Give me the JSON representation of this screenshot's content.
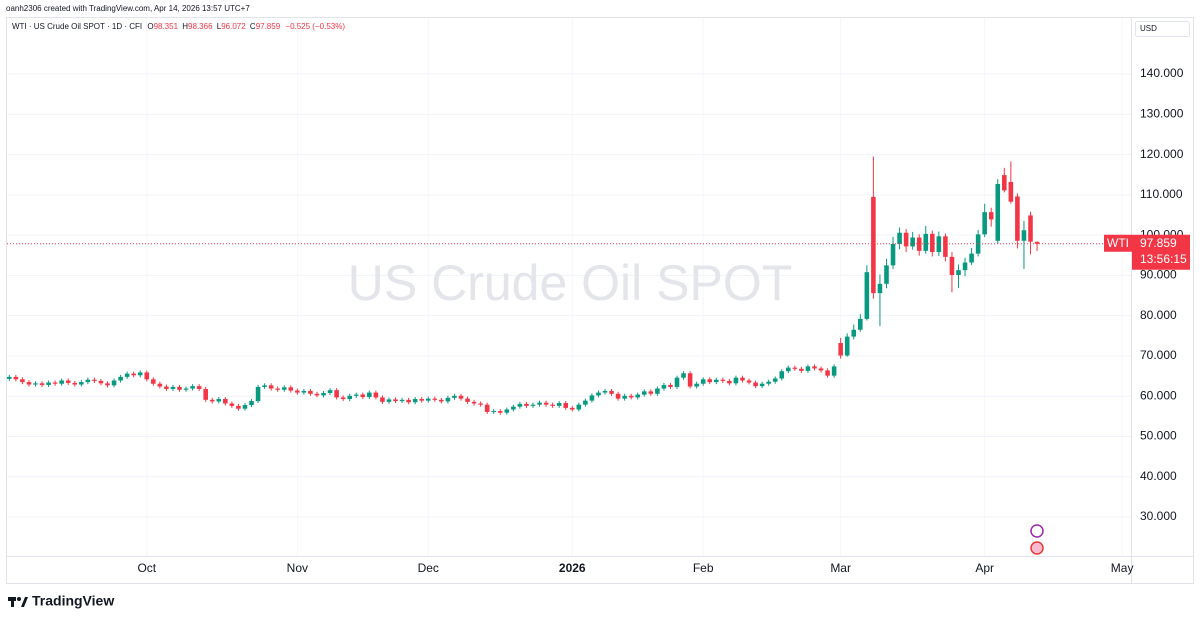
{
  "chart_data": {
    "type": "candlestick",
    "credit": "oanh2306 created with TradingView.com, Apr 14, 2026 13:57 UTC+7",
    "symbol": "WTI · US Crude Oil SPOT · 1D · CFI",
    "ohlc_letters": [
      "O",
      "H",
      "L",
      "C"
    ],
    "change": "−0.525 (−0.53%)",
    "currency": "USD",
    "watermark": "US Crude Oil SPOT",
    "ticker": "WTI",
    "countdown": "13:56:15",
    "logo": "TradingView",
    "up_color": "#089981",
    "down_color": "#f23645",
    "grid": true,
    "ylim": [
      20.32,
      148.95
    ],
    "yticks": [
      {
        "value": 30,
        "label": "30.000"
      },
      {
        "value": 40,
        "label": "40.000"
      },
      {
        "value": 50,
        "label": "50.000"
      },
      {
        "value": 60,
        "label": "60.000"
      },
      {
        "value": 70,
        "label": "70.000"
      },
      {
        "value": 80,
        "label": "80.000"
      },
      {
        "value": 90,
        "label": "90.000"
      },
      {
        "value": 100,
        "label": "100.000"
      },
      {
        "value": 110,
        "label": "110.000"
      },
      {
        "value": 120,
        "label": "120.000"
      },
      {
        "value": 130,
        "label": "130.000"
      },
      {
        "value": 140,
        "label": "140.000"
      }
    ],
    "xlim": [
      -0.2,
      171.2
    ],
    "xticks": [
      {
        "value": 21,
        "label": "Oct"
      },
      {
        "value": 44,
        "label": "Nov"
      },
      {
        "value": 64,
        "label": "Dec"
      },
      {
        "value": 86,
        "label": "2026"
      },
      {
        "value": 106,
        "label": "Feb"
      },
      {
        "value": 127,
        "label": "Mar"
      },
      {
        "value": 149,
        "label": "Apr"
      },
      {
        "value": 170,
        "label": "May"
      }
    ],
    "open": [
      64.3,
      64.8,
      64.2,
      63.5,
      62.9,
      63.2,
      62.8,
      63.4,
      63.1,
      63.9,
      63.3,
      62.9,
      63.5,
      64.1,
      63.8,
      63.2,
      62.7,
      63.9,
      64.8,
      65.6,
      65.2,
      65.9,
      64.2,
      63.1,
      62.4,
      61.8,
      62.3,
      61.6,
      61.9,
      62.5,
      61.8,
      59.1,
      58.7,
      59.3,
      58.2,
      57.6,
      56.9,
      57.8,
      58.8,
      62.3,
      62.7,
      61.9,
      61.6,
      62.2,
      61.4,
      60.9,
      61.3,
      60.6,
      60.2,
      60.8,
      61.5,
      59.7,
      59.3,
      60.1,
      60.4,
      59.8,
      60.9,
      59.7,
      58.6,
      59.2,
      58.8,
      59.1,
      58.5,
      59.3,
      58.9,
      59.4,
      59.1,
      58.7,
      59.6,
      60.1,
      59.4,
      58.6,
      58.2,
      57.9,
      56.1,
      56.3,
      55.9,
      56.7,
      57.4,
      58.1,
      57.6,
      57.9,
      58.4,
      57.9,
      57.6,
      58.3,
      57.1,
      56.7,
      57.9,
      58.9,
      60.2,
      60.9,
      61.3,
      60.6,
      59.4,
      60.1,
      59.7,
      60.4,
      61.2,
      60.6,
      61.9,
      62.8,
      62.3,
      64.6,
      65.7,
      62.4,
      63.1,
      64.2,
      63.5,
      64.1,
      63.8,
      63.2,
      64.6,
      63.9,
      63.4,
      62.5,
      63.1,
      63.6,
      64.4,
      66.2,
      67.1,
      66.8,
      66.3,
      67.4,
      66.9,
      66.4,
      65.1,
      73.2,
      70.1,
      74.8,
      76.5,
      79.2,
      109.5,
      85.6,
      87.9,
      92.5,
      97.8,
      100.6,
      97.2,
      99.4,
      96.1,
      100.3,
      95.8,
      99.7,
      94.6,
      90.1,
      91.3,
      93.2,
      95.4,
      100.2,
      105.7,
      98.6,
      114.9,
      113.2,
      109.6,
      98.6,
      104.9,
      98.351
    ],
    "high": [
      65.3,
      65.3,
      64.7,
      64.0,
      63.7,
      63.7,
      63.9,
      63.9,
      64.4,
      64.4,
      63.8,
      64.0,
      64.6,
      64.6,
      64.3,
      63.7,
      64.4,
      65.3,
      66.1,
      66.1,
      66.4,
      66.4,
      64.7,
      63.6,
      62.9,
      62.8,
      62.8,
      62.4,
      63.0,
      63.0,
      62.3,
      59.6,
      59.8,
      59.8,
      58.7,
      58.1,
      58.3,
      59.3,
      62.8,
      63.2,
      63.2,
      62.4,
      62.7,
      62.7,
      61.9,
      61.8,
      61.8,
      61.1,
      61.3,
      62.0,
      62.0,
      60.2,
      60.6,
      60.9,
      60.9,
      61.4,
      61.4,
      60.2,
      59.7,
      59.7,
      59.6,
      59.6,
      59.8,
      59.8,
      59.9,
      59.9,
      59.6,
      60.1,
      60.6,
      60.6,
      59.9,
      59.1,
      58.7,
      58.4,
      56.8,
      56.8,
      57.2,
      57.9,
      58.6,
      58.6,
      58.4,
      58.9,
      58.9,
      58.4,
      58.8,
      58.8,
      57.6,
      58.4,
      59.4,
      60.7,
      61.4,
      61.8,
      61.8,
      61.1,
      60.6,
      60.6,
      60.9,
      61.7,
      61.7,
      62.4,
      63.3,
      63.3,
      65.1,
      66.2,
      66.2,
      63.6,
      64.7,
      64.7,
      64.6,
      64.6,
      64.3,
      65.1,
      65.1,
      64.4,
      63.9,
      63.6,
      64.1,
      64.9,
      66.7,
      67.6,
      67.6,
      67.3,
      67.9,
      67.9,
      67.4,
      66.9,
      67.9,
      74.5,
      75.6,
      77.8,
      80.4,
      92.5,
      119.5,
      90.2,
      94.1,
      99.6,
      101.9,
      101.5,
      100.8,
      100.2,
      102.3,
      101.1,
      100.9,
      100.4,
      95.8,
      92.7,
      94.4,
      96.8,
      101.3,
      107.8,
      106.8,
      113.9,
      116.7,
      118.3,
      110.4,
      103.5,
      105.8,
      98.366
    ],
    "low": [
      63.8,
      63.7,
      63.0,
      62.4,
      62.4,
      62.3,
      62.3,
      62.6,
      62.6,
      62.8,
      62.4,
      62.4,
      63.0,
      63.3,
      62.7,
      62.2,
      62.2,
      63.4,
      64.3,
      64.7,
      64.7,
      63.7,
      62.6,
      61.9,
      61.3,
      61.3,
      61.1,
      61.1,
      61.4,
      61.3,
      58.6,
      58.2,
      58.2,
      57.7,
      57.1,
      56.4,
      56.4,
      57.3,
      58.3,
      61.8,
      61.4,
      61.1,
      61.1,
      60.9,
      60.4,
      60.4,
      60.1,
      59.7,
      59.7,
      60.3,
      59.2,
      58.8,
      58.8,
      59.6,
      59.3,
      59.3,
      59.2,
      58.1,
      58.1,
      58.3,
      58.3,
      58.0,
      58.0,
      58.4,
      58.4,
      58.6,
      58.2,
      58.2,
      59.1,
      58.9,
      58.1,
      57.7,
      57.4,
      55.6,
      55.6,
      55.4,
      55.4,
      56.2,
      56.9,
      57.1,
      57.1,
      57.4,
      57.4,
      57.1,
      57.1,
      56.6,
      56.2,
      56.2,
      57.4,
      58.4,
      59.7,
      60.4,
      60.1,
      58.9,
      58.9,
      59.2,
      59.2,
      59.9,
      60.1,
      60.1,
      61.4,
      61.8,
      61.8,
      64.1,
      61.9,
      61.9,
      62.6,
      63.0,
      63.0,
      63.3,
      62.7,
      62.7,
      63.4,
      62.9,
      62.0,
      62.0,
      62.6,
      63.1,
      63.9,
      65.7,
      66.3,
      65.8,
      65.8,
      66.4,
      65.9,
      64.6,
      64.6,
      69.3,
      69.8,
      74.1,
      76.0,
      78.8,
      84.2,
      77.4,
      86.8,
      91.6,
      96.5,
      95.8,
      96.4,
      94.9,
      95.4,
      94.7,
      94.8,
      93.5,
      85.8,
      86.9,
      89.8,
      92.6,
      94.7,
      99.5,
      102.1,
      97.8,
      110.6,
      107.8,
      96.7,
      91.6,
      95.2,
      96.072
    ],
    "close": [
      64.8,
      64.2,
      63.5,
      62.9,
      63.2,
      62.8,
      63.4,
      63.1,
      63.9,
      63.3,
      62.9,
      63.5,
      64.1,
      63.8,
      63.2,
      62.7,
      63.9,
      64.8,
      65.6,
      65.2,
      65.9,
      64.2,
      63.1,
      62.4,
      61.8,
      62.3,
      61.6,
      61.9,
      62.5,
      61.8,
      59.1,
      58.7,
      59.3,
      58.2,
      57.6,
      56.9,
      57.8,
      58.8,
      62.3,
      62.7,
      61.9,
      61.6,
      62.2,
      61.4,
      60.9,
      61.3,
      60.6,
      60.2,
      60.8,
      61.5,
      59.7,
      59.3,
      60.1,
      60.4,
      59.8,
      60.9,
      59.7,
      58.6,
      59.2,
      58.8,
      59.1,
      58.5,
      59.3,
      58.9,
      59.4,
      59.1,
      58.7,
      59.6,
      60.1,
      59.4,
      58.6,
      58.2,
      57.9,
      56.1,
      56.3,
      55.9,
      56.7,
      57.4,
      58.1,
      57.6,
      57.9,
      58.4,
      57.9,
      57.6,
      58.3,
      57.1,
      56.7,
      57.9,
      58.9,
      60.2,
      60.9,
      61.3,
      60.6,
      59.4,
      60.1,
      59.7,
      60.4,
      61.2,
      60.6,
      61.9,
      62.8,
      62.3,
      64.6,
      65.7,
      62.4,
      63.1,
      64.2,
      63.5,
      64.1,
      63.8,
      63.2,
      64.6,
      63.9,
      63.4,
      62.5,
      63.1,
      63.6,
      64.4,
      66.2,
      67.1,
      66.8,
      66.3,
      67.4,
      66.9,
      66.4,
      65.1,
      67.4,
      70.1,
      74.8,
      76.5,
      79.2,
      90.8,
      85.6,
      87.9,
      92.5,
      97.8,
      100.6,
      97.2,
      99.4,
      96.1,
      100.3,
      95.8,
      99.7,
      94.6,
      90.1,
      91.3,
      93.2,
      95.4,
      100.2,
      105.7,
      103.9,
      112.7,
      111.1,
      108.3,
      98.6,
      101.2,
      98.384,
      97.859
    ]
  }
}
